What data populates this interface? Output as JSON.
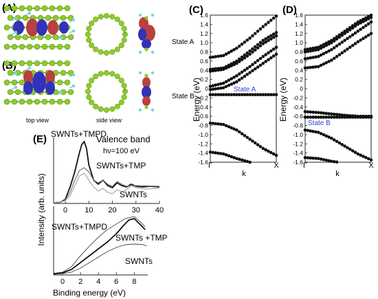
{
  "panels": {
    "A": {
      "label": "(A)",
      "state_label": "State A"
    },
    "B": {
      "label": "(B)",
      "state_label": "State B",
      "view_labels": [
        "top view",
        "side view"
      ]
    },
    "C": {
      "label": "(C)",
      "ylabel": "Energy (eV)",
      "xlabel": "k",
      "xticks": [
        "Γ",
        "X"
      ],
      "inset_label": "State A",
      "chart_data": {
        "type": "scatter",
        "ylim": [
          -1.6,
          1.6
        ],
        "yticks": [
          1.6,
          1.4,
          1.2,
          1.0,
          0.8,
          0.6,
          0.4,
          0.2,
          0,
          -0.2,
          -0.4,
          -0.6,
          -0.8,
          -1.0,
          -1.2,
          -1.4,
          -1.6
        ],
        "ytick_labels": [
          "1.6",
          "1.4",
          "1.2",
          "1.0",
          "0.8",
          "0.6",
          "0.4",
          "0.2",
          "0",
          "-0.2",
          "-0.4",
          "-0.6",
          "-0.8",
          "-1.0",
          "-1.2",
          "-1.4",
          "-1.6"
        ],
        "bands": [
          {
            "k": [
              0,
              0.2,
              0.4,
              0.6,
              0.8,
              1.0
            ],
            "E": [
              0.38,
              0.42,
              0.55,
              0.75,
              0.98,
              1.15
            ]
          },
          {
            "k": [
              0,
              0.2,
              0.4,
              0.6,
              0.8,
              1.0
            ],
            "E": [
              0.42,
              0.45,
              0.6,
              0.82,
              1.05,
              1.22
            ]
          },
          {
            "k": [
              0,
              0.2,
              0.4,
              0.6,
              0.8,
              1.0
            ],
            "E": [
              0.05,
              0.12,
              0.28,
              0.48,
              0.7,
              0.9
            ]
          },
          {
            "k": [
              0,
              0.2,
              0.4,
              0.6,
              0.8,
              1.0
            ],
            "E": [
              -0.02,
              0.02,
              0.15,
              0.35,
              0.55,
              0.75
            ]
          },
          {
            "k": [
              0,
              0.2,
              0.4,
              0.6,
              0.8,
              1.0
            ],
            "E": [
              0.68,
              0.72,
              0.88,
              1.1,
              1.35,
              1.58
            ]
          },
          {
            "k": [
              0,
              0.2,
              0.4,
              0.6,
              0.8,
              1.0
            ],
            "E": [
              -0.13,
              -0.13,
              -0.13,
              -0.13,
              -0.13,
              -0.13
            ]
          },
          {
            "k": [
              0,
              0.2,
              0.4,
              0.6,
              0.8,
              1.0
            ],
            "E": [
              -0.75,
              -0.78,
              -0.9,
              -1.1,
              -1.3,
              -1.45
            ]
          },
          {
            "k": [
              0,
              0.2,
              0.4,
              0.6,
              0.8,
              1.0
            ],
            "E": [
              -1.38,
              -1.42,
              -1.52,
              -1.6,
              -1.62,
              -1.62
            ]
          }
        ]
      }
    },
    "D": {
      "label": "(D)",
      "ylabel": "Energy (eV)",
      "xlabel": "k",
      "xticks": [
        "Γ",
        "X"
      ],
      "inset_label": "State B",
      "chart_data": {
        "type": "scatter",
        "ylim": [
          -1.6,
          1.6
        ],
        "yticks": [
          1.6,
          1.4,
          1.2,
          1.0,
          0.8,
          0.6,
          0.4,
          0.2,
          0,
          -0.2,
          -0.4,
          -0.6,
          -0.8,
          -1.0,
          -1.2,
          -1.4,
          -1.6
        ],
        "ytick_labels": [
          "1.6",
          "1.4",
          "1.2",
          "1.0",
          "0.8",
          "0.6",
          "0.4",
          "0.2",
          "0",
          "-0.2",
          "-0.4",
          "-0.6",
          "-0.8",
          "-1.0",
          "-1.2",
          "-1.4",
          "-1.6"
        ],
        "bands": [
          {
            "k": [
              0,
              0.2,
              0.4,
              0.6,
              0.8,
              1.0
            ],
            "E": [
              0.8,
              0.85,
              1.0,
              1.2,
              1.4,
              1.55
            ]
          },
          {
            "k": [
              0,
              0.2,
              0.4,
              0.6,
              0.8,
              1.0
            ],
            "E": [
              0.85,
              0.9,
              1.05,
              1.25,
              1.45,
              1.6
            ]
          },
          {
            "k": [
              0,
              0.2,
              0.4,
              0.6,
              0.8,
              1.0
            ],
            "E": [
              0.65,
              0.7,
              0.85,
              1.05,
              1.25,
              1.45
            ]
          },
          {
            "k": [
              0,
              0.2,
              0.4,
              0.6,
              0.8,
              1.0
            ],
            "E": [
              0.45,
              0.48,
              0.62,
              0.82,
              1.02,
              1.2
            ]
          },
          {
            "k": [
              0,
              0.2,
              0.4,
              0.6,
              0.8,
              1.0
            ],
            "E": [
              -0.5,
              -0.52,
              -0.55,
              -0.58,
              -0.6,
              -0.6
            ]
          },
          {
            "k": [
              0,
              0.2,
              0.4,
              0.6,
              0.8,
              1.0
            ],
            "E": [
              -0.62,
              -0.62,
              -0.62,
              -0.62,
              -0.62,
              -0.62
            ]
          },
          {
            "k": [
              0,
              0.2,
              0.4,
              0.6,
              0.8,
              1.0
            ],
            "E": [
              -0.9,
              -0.95,
              -1.08,
              -1.25,
              -1.42,
              -1.55
            ]
          },
          {
            "k": [
              0,
              0.2,
              0.4,
              0.6,
              0.8,
              1.0
            ],
            "E": [
              -1.5,
              -1.52,
              -1.58,
              -1.62,
              -1.62,
              -1.62
            ]
          }
        ]
      }
    },
    "E": {
      "label": "(E)",
      "ylabel": "Intensity (arb. units)",
      "xlabel": "Binding energy (eV)",
      "title_line1": "Valence band",
      "title_line2": "hν=100 eV",
      "top": {
        "xticks": [
          0,
          10,
          20,
          30,
          40
        ],
        "xlim": [
          -5,
          40
        ],
        "labels": [
          "SWNTs+TMPD",
          "SWNTs+TMP",
          "SWNTs"
        ]
      },
      "bottom": {
        "xticks": [
          0,
          2,
          4,
          6,
          8
        ],
        "xlim": [
          -1,
          9.5
        ],
        "labels": [
          "SWNTs+TMPD",
          "SWNTs +TMP",
          "SWNTs"
        ]
      }
    }
  },
  "colors": {
    "carbon": "#8ecb2c",
    "hydrogen": "#7ad3e0",
    "lobe_blue": "#3232b8",
    "lobe_red": "#b84040",
    "accent_blue": "#2a3fd6"
  }
}
